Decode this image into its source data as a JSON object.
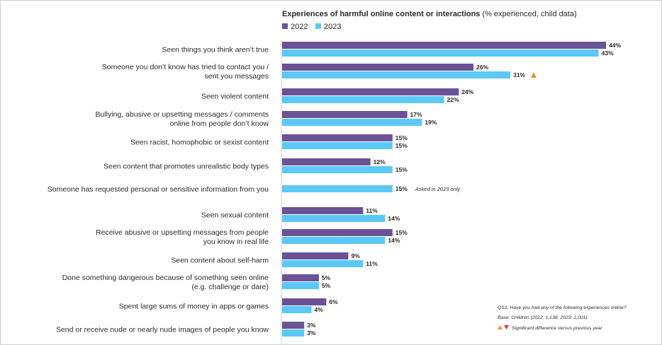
{
  "chart_data": {
    "type": "bar",
    "orientation": "horizontal",
    "title": "Experiences of harmful online content or interactions",
    "title_suffix": "(% experienced, child data)",
    "unit": "%",
    "legend_position": "top-left",
    "grid": false,
    "xlim": [
      0,
      50
    ],
    "categories": [
      [
        "Seen things you think aren’t true"
      ],
      [
        "Someone you don’t know has tried to contact you /",
        "sent you messages"
      ],
      [
        "Seen violent content"
      ],
      [
        "Bullying, abusive or upsetting messages / comments",
        "online from people don’t know"
      ],
      [
        "Seen racist, homophobic or sexist content"
      ],
      [
        "Seen content that promotes unrealistic body types"
      ],
      [
        "Someone has requested personal or sensitive information from you"
      ],
      [
        "Seen sexual content"
      ],
      [
        "Receive abusive or upsetting messages from people",
        "you know in real life"
      ],
      [
        "Seen content about self-harm"
      ],
      [
        "Done something dangerous because of something seen online",
        "(e.g. challenge or dare)"
      ],
      [
        "Spent large sums of money in apps or games"
      ],
      [
        "Send or receive nude or nearly nude images of people you know"
      ]
    ],
    "series": [
      {
        "name": "2022",
        "color": "#6a5296",
        "values": [
          44,
          26,
          24,
          17,
          15,
          12,
          null,
          11,
          15,
          9,
          5,
          6,
          3
        ]
      },
      {
        "name": "2023",
        "color": "#5bc8f5",
        "values": [
          43,
          31,
          22,
          19,
          15,
          15,
          15,
          14,
          14,
          11,
          5,
          4,
          3
        ]
      }
    ],
    "annotations": [
      {
        "category_index": 1,
        "series": "2023",
        "marker": "triangle-up",
        "color": "#e8962e"
      },
      {
        "category_index": 6,
        "text": "Asked in 2023 only"
      }
    ],
    "footnotes": [
      "QS1. Have you had any of the following experiences online?",
      "Base: Children (2022: 1,138, 2023: 1,001)",
      "Significant difference versus previous year"
    ],
    "significance_colors": {
      "up": "#e8962e",
      "down": "#d9344a"
    }
  }
}
